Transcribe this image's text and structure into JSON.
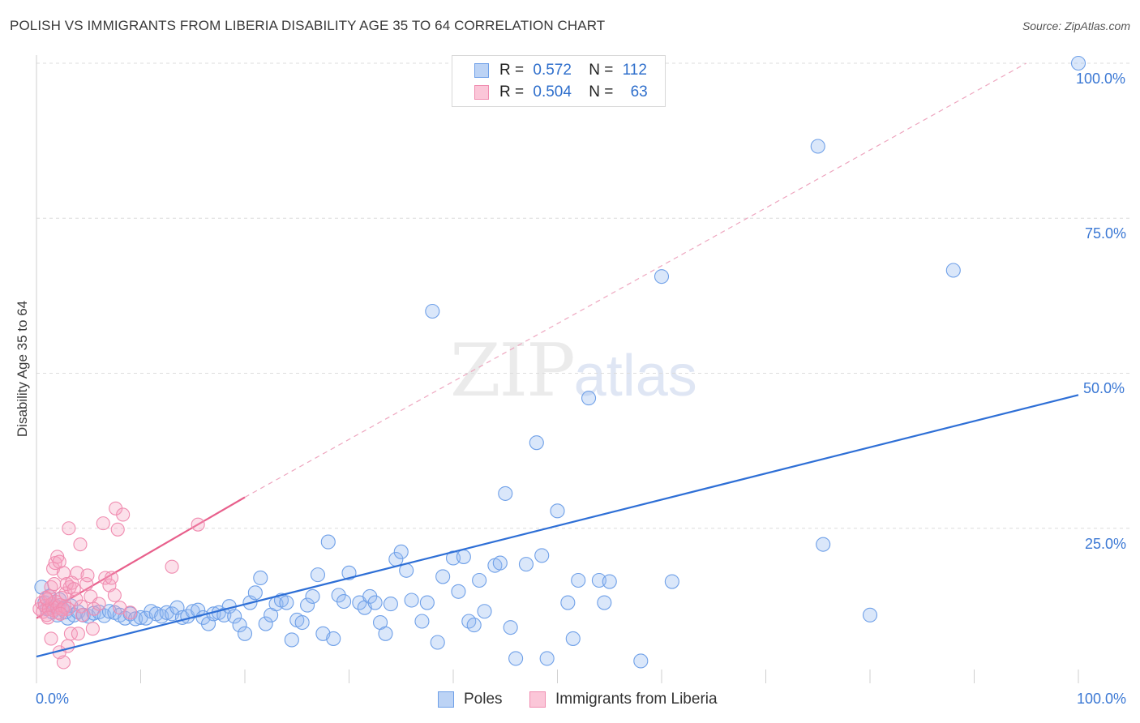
{
  "title": "POLISH VS IMMIGRANTS FROM LIBERIA DISABILITY AGE 35 TO 64 CORRELATION CHART",
  "source": "Source: ZipAtlas.com",
  "watermark_a": "ZIP",
  "watermark_b": "atlas",
  "legend_top": {
    "rows": [
      {
        "r_label": "R =",
        "r_value": "0.572",
        "n_label": "N =",
        "n_value": "112"
      },
      {
        "r_label": "R =",
        "r_value": "0.504",
        "n_label": "N =",
        "n_value": "63"
      }
    ]
  },
  "legend_bottom": {
    "poles": "Poles",
    "liberia": "Immigrants from Liberia"
  },
  "axis": {
    "x_min_label": "0.0%",
    "x_max_label": "100.0%",
    "y_ticks": [
      "100.0%",
      "75.0%",
      "50.0%",
      "25.0%"
    ],
    "ylabel": "Disability Age 35 to 64"
  },
  "colors": {
    "poles": "#6fa0e8",
    "poles_line": "#2e6fd6",
    "liberia": "#f08cb0",
    "liberia_line": "#e8608c",
    "tick": "#3b78d4"
  },
  "chart_data": {
    "type": "scatter",
    "title": "POLISH VS IMMIGRANTS FROM LIBERIA DISABILITY AGE 35 TO 64 CORRELATION CHART",
    "xlabel": "",
    "ylabel": "Disability Age 35 to 64",
    "xlim": [
      0,
      100
    ],
    "ylim": [
      0,
      100
    ],
    "series": [
      {
        "name": "Poles",
        "R": 0.572,
        "N": 112,
        "trend": {
          "x0": 0,
          "y0": 4.3,
          "x1": 100,
          "y1": 46.5
        },
        "points": [
          [
            0.5,
            15.5
          ],
          [
            0.8,
            13.0
          ],
          [
            1.0,
            12.0
          ],
          [
            1.2,
            14.0
          ],
          [
            1.5,
            11.5
          ],
          [
            1.8,
            12.5
          ],
          [
            2.0,
            11.0
          ],
          [
            2.2,
            13.5
          ],
          [
            2.5,
            12.0
          ],
          [
            2.8,
            11.5
          ],
          [
            3.0,
            10.5
          ],
          [
            3.3,
            12.5
          ],
          [
            3.6,
            11.0
          ],
          [
            4.0,
            11.5
          ],
          [
            4.5,
            11.0
          ],
          [
            5.0,
            10.8
          ],
          [
            5.5,
            11.3
          ],
          [
            6.0,
            11.5
          ],
          [
            6.5,
            10.9
          ],
          [
            7.0,
            11.6
          ],
          [
            7.5,
            11.4
          ],
          [
            8.0,
            11.0
          ],
          [
            8.5,
            10.5
          ],
          [
            9.0,
            11.2
          ],
          [
            9.5,
            10.4
          ],
          [
            10.0,
            10.6
          ],
          [
            10.5,
            10.5
          ],
          [
            11.0,
            11.6
          ],
          [
            11.5,
            11.2
          ],
          [
            12.0,
            10.8
          ],
          [
            12.5,
            11.4
          ],
          [
            13.0,
            11.2
          ],
          [
            13.5,
            12.2
          ],
          [
            14.0,
            10.6
          ],
          [
            14.5,
            10.8
          ],
          [
            15.0,
            11.6
          ],
          [
            15.5,
            11.8
          ],
          [
            16.0,
            10.6
          ],
          [
            16.5,
            9.6
          ],
          [
            17.0,
            11.2
          ],
          [
            17.5,
            11.4
          ],
          [
            18.0,
            11.0
          ],
          [
            18.5,
            12.4
          ],
          [
            19.0,
            10.8
          ],
          [
            19.5,
            9.4
          ],
          [
            20.0,
            8.0
          ],
          [
            20.5,
            13.0
          ],
          [
            21.0,
            14.6
          ],
          [
            21.5,
            17.0
          ],
          [
            22.0,
            9.6
          ],
          [
            22.5,
            11.0
          ],
          [
            23.0,
            12.8
          ],
          [
            23.5,
            13.4
          ],
          [
            24.0,
            13.0
          ],
          [
            24.5,
            7.0
          ],
          [
            25.0,
            10.2
          ],
          [
            25.5,
            9.8
          ],
          [
            26.0,
            12.6
          ],
          [
            26.5,
            14.0
          ],
          [
            27.0,
            17.5
          ],
          [
            27.5,
            8.0
          ],
          [
            28.0,
            22.8
          ],
          [
            28.5,
            7.2
          ],
          [
            29.0,
            14.2
          ],
          [
            29.5,
            13.2
          ],
          [
            30.0,
            17.8
          ],
          [
            31.0,
            13.0
          ],
          [
            31.5,
            12.2
          ],
          [
            32.0,
            14.0
          ],
          [
            32.5,
            13.0
          ],
          [
            33.0,
            9.8
          ],
          [
            33.5,
            8.0
          ],
          [
            34.0,
            12.8
          ],
          [
            34.5,
            20.0
          ],
          [
            35.0,
            21.2
          ],
          [
            35.5,
            18.2
          ],
          [
            36.0,
            13.4
          ],
          [
            37.0,
            10.0
          ],
          [
            37.5,
            13.0
          ],
          [
            38.0,
            60.0
          ],
          [
            38.5,
            6.6
          ],
          [
            39.0,
            17.2
          ],
          [
            40.0,
            20.2
          ],
          [
            40.5,
            14.8
          ],
          [
            41.0,
            20.4
          ],
          [
            41.5,
            10.0
          ],
          [
            42.0,
            9.4
          ],
          [
            42.5,
            16.6
          ],
          [
            43.0,
            11.6
          ],
          [
            44.0,
            19.0
          ],
          [
            44.5,
            19.4
          ],
          [
            45.0,
            30.6
          ],
          [
            45.5,
            9.0
          ],
          [
            46.0,
            4.0
          ],
          [
            47.0,
            19.2
          ],
          [
            48.0,
            38.8
          ],
          [
            48.5,
            20.6
          ],
          [
            49.0,
            4.0
          ],
          [
            50.0,
            27.8
          ],
          [
            51.0,
            13.0
          ],
          [
            51.5,
            7.2
          ],
          [
            52.0,
            16.6
          ],
          [
            53.0,
            46.0
          ],
          [
            54.0,
            16.6
          ],
          [
            54.5,
            13.0
          ],
          [
            55.0,
            16.4
          ],
          [
            58.0,
            3.6
          ],
          [
            60.0,
            65.6
          ],
          [
            61.0,
            16.4
          ],
          [
            75.0,
            86.6
          ],
          [
            75.5,
            22.4
          ],
          [
            80.0,
            11.0
          ],
          [
            88.0,
            66.6
          ],
          [
            100.0,
            100.0
          ]
        ]
      },
      {
        "name": "Immigrants from Liberia",
        "R": 0.504,
        "N": 63,
        "trend": {
          "x0": 0,
          "y0": 10.5,
          "x1": 20,
          "y1": 30.0,
          "dashed_to": {
            "x": 95,
            "y": 100
          }
        },
        "points": [
          [
            0.3,
            12.0
          ],
          [
            0.5,
            13.0
          ],
          [
            0.6,
            11.5
          ],
          [
            0.8,
            12.5
          ],
          [
            1.0,
            13.5
          ],
          [
            1.0,
            11.0
          ],
          [
            1.2,
            12.0
          ],
          [
            1.3,
            14.0
          ],
          [
            1.5,
            12.8
          ],
          [
            1.6,
            11.8
          ],
          [
            1.8,
            13.2
          ],
          [
            2.0,
            12.2
          ],
          [
            2.1,
            11.4
          ],
          [
            2.2,
            12.6
          ],
          [
            2.4,
            13.8
          ],
          [
            2.5,
            11.9
          ],
          [
            2.7,
            12.3
          ],
          [
            2.8,
            14.5
          ],
          [
            3.0,
            12.0
          ],
          [
            3.2,
            15.5
          ],
          [
            1.4,
            15.5
          ],
          [
            1.7,
            16.0
          ],
          [
            1.6,
            18.5
          ],
          [
            1.8,
            19.4
          ],
          [
            2.0,
            20.4
          ],
          [
            2.2,
            19.6
          ],
          [
            2.6,
            17.8
          ],
          [
            2.9,
            16.0
          ],
          [
            3.1,
            25.0
          ],
          [
            3.4,
            16.2
          ],
          [
            3.6,
            15.2
          ],
          [
            3.8,
            13.6
          ],
          [
            3.9,
            17.8
          ],
          [
            4.2,
            22.4
          ],
          [
            4.3,
            12.4
          ],
          [
            4.8,
            16.0
          ],
          [
            4.9,
            17.4
          ],
          [
            5.2,
            14.0
          ],
          [
            5.5,
            12.0
          ],
          [
            6.0,
            12.8
          ],
          [
            6.4,
            25.8
          ],
          [
            6.6,
            17.0
          ],
          [
            7.0,
            15.8
          ],
          [
            7.2,
            17.0
          ],
          [
            7.5,
            14.2
          ],
          [
            7.6,
            28.2
          ],
          [
            7.8,
            24.8
          ],
          [
            8.0,
            12.2
          ],
          [
            8.3,
            27.2
          ],
          [
            9.0,
            11.4
          ],
          [
            1.4,
            7.2
          ],
          [
            2.2,
            5.0
          ],
          [
            2.6,
            3.4
          ],
          [
            3.0,
            6.0
          ],
          [
            3.3,
            8.0
          ],
          [
            4.0,
            8.0
          ],
          [
            4.4,
            11.0
          ],
          [
            5.4,
            8.8
          ],
          [
            13.0,
            18.8
          ],
          [
            15.5,
            25.6
          ],
          [
            1.1,
            10.6
          ],
          [
            0.9,
            13.8
          ],
          [
            2.3,
            11.2
          ]
        ]
      }
    ]
  }
}
